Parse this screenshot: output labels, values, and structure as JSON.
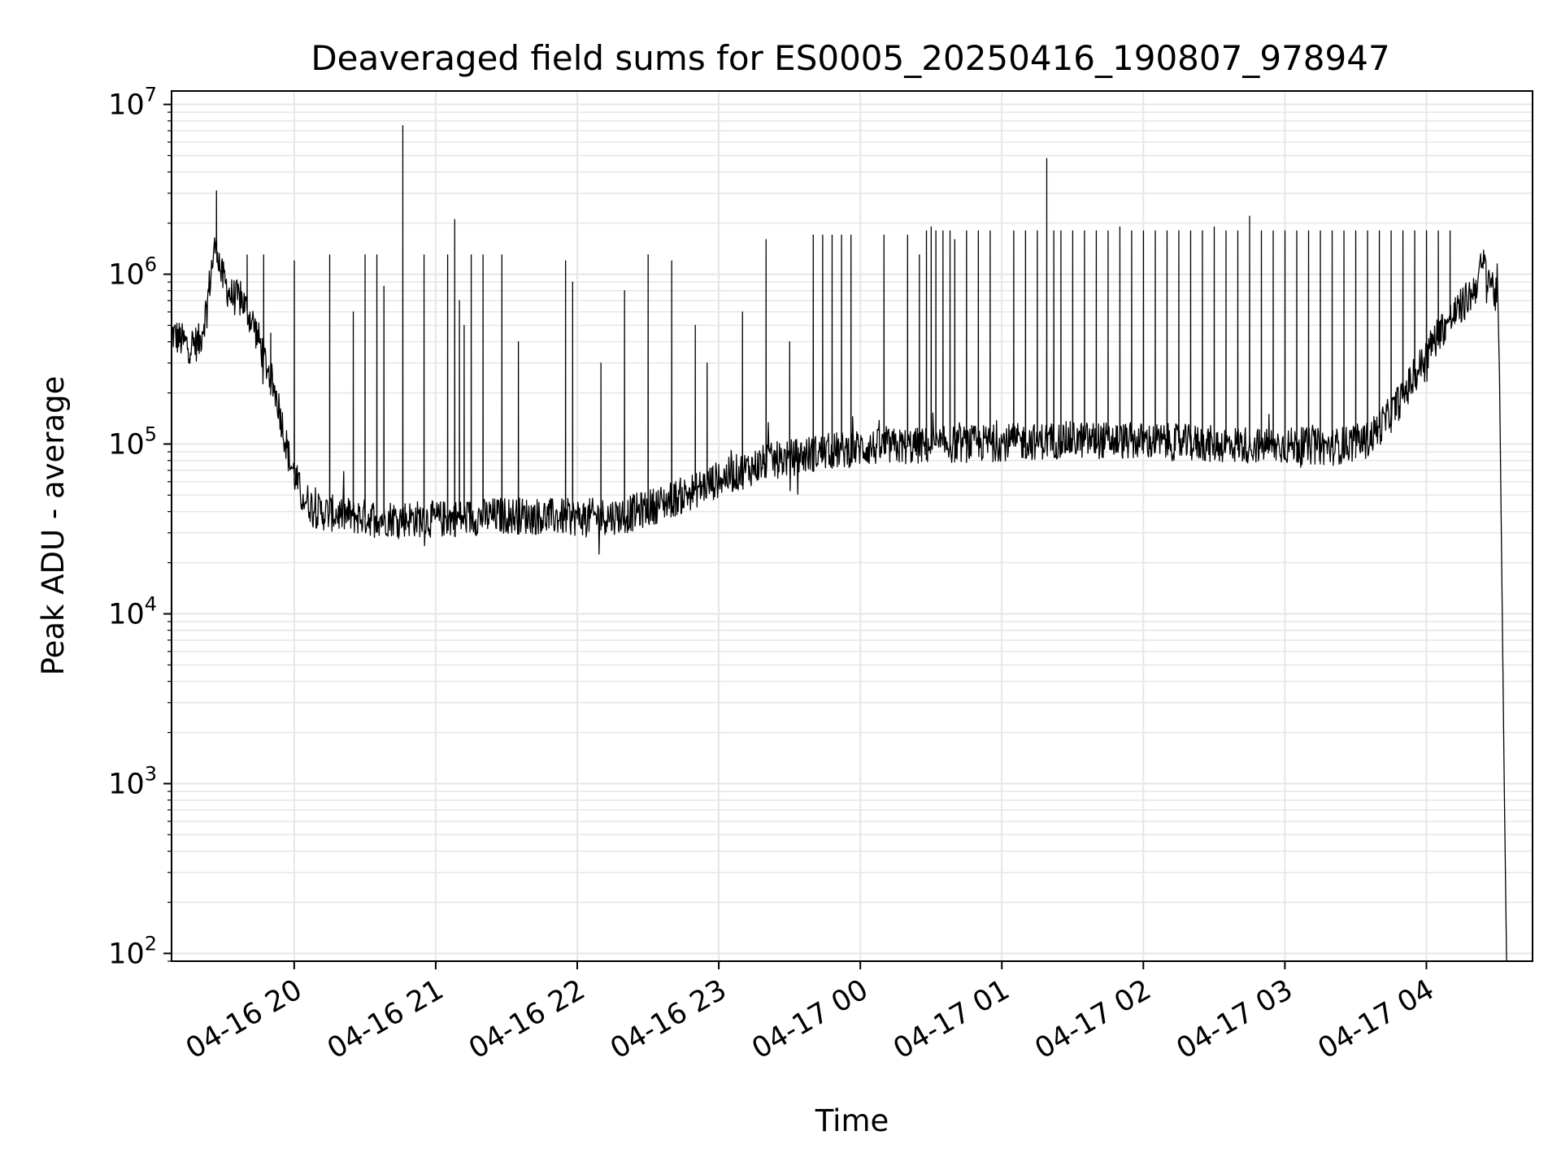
{
  "chart_data": {
    "type": "line",
    "title": "Deaveraged field sums for ES0005_20250416_190807_978947",
    "xlabel": "Time",
    "ylabel": "Peak ADU - average",
    "y_scale": "log",
    "ylim": [
      90,
      12000000
    ],
    "xlim": [
      "04-16 19:08",
      "04-17 04:45"
    ],
    "grid": true,
    "line_color": "#000000",
    "grid_color": "#e6e6e6",
    "x_ticks": [
      {
        "label": "04-16 20",
        "time": "04-16 20:00"
      },
      {
        "label": "04-16 21",
        "time": "04-16 21:00"
      },
      {
        "label": "04-16 22",
        "time": "04-16 22:00"
      },
      {
        "label": "04-16 23",
        "time": "04-16 23:00"
      },
      {
        "label": "04-17 00",
        "time": "04-17 00:00"
      },
      {
        "label": "04-17 01",
        "time": "04-17 01:00"
      },
      {
        "label": "04-17 02",
        "time": "04-17 02:00"
      },
      {
        "label": "04-17 03",
        "time": "04-17 03:00"
      },
      {
        "label": "04-17 04",
        "time": "04-17 04:00"
      }
    ],
    "y_ticks": [
      {
        "base": "10",
        "exp": "2",
        "value": 100
      },
      {
        "base": "10",
        "exp": "3",
        "value": 1000
      },
      {
        "base": "10",
        "exp": "4",
        "value": 10000
      },
      {
        "base": "10",
        "exp": "5",
        "value": 100000
      },
      {
        "base": "10",
        "exp": "6",
        "value": 1000000
      },
      {
        "base": "10",
        "exp": "7",
        "value": 10000000
      }
    ],
    "series": [
      {
        "baseline": [
          [
            "04-16 19:08",
            450000
          ],
          [
            "04-16 19:15",
            380000
          ],
          [
            "04-16 19:20",
            400000
          ],
          [
            "04-16 19:23",
            650000
          ],
          [
            "04-16 19:25",
            1100000
          ],
          [
            "04-16 19:27",
            1600000
          ],
          [
            "04-16 19:29",
            1000000
          ],
          [
            "04-16 19:33",
            750000
          ],
          [
            "04-16 19:38",
            700000
          ],
          [
            "04-16 19:43",
            500000
          ],
          [
            "04-16 19:48",
            300000
          ],
          [
            "04-16 19:53",
            180000
          ],
          [
            "04-16 19:58",
            80000
          ],
          [
            "04-16 20:03",
            50000
          ],
          [
            "04-16 20:10",
            40000
          ],
          [
            "04-16 20:30",
            37000
          ],
          [
            "04-16 21:00",
            36000
          ],
          [
            "04-16 21:30",
            38000
          ],
          [
            "04-16 22:00",
            37000
          ],
          [
            "04-16 22:20",
            38000
          ],
          [
            "04-16 22:30",
            42000
          ],
          [
            "04-16 22:45",
            50000
          ],
          [
            "04-16 23:00",
            62000
          ],
          [
            "04-16 23:20",
            78000
          ],
          [
            "04-16 23:40",
            88000
          ],
          [
            "04-17 00:00",
            95000
          ],
          [
            "04-17 00:30",
            98000
          ],
          [
            "04-17 01:00",
            102000
          ],
          [
            "04-17 01:30",
            106000
          ],
          [
            "04-17 02:00",
            104000
          ],
          [
            "04-17 02:30",
            100000
          ],
          [
            "04-17 03:00",
            98000
          ],
          [
            "04-17 03:20",
            96000
          ],
          [
            "04-17 03:35",
            105000
          ],
          [
            "04-17 03:45",
            150000
          ],
          [
            "04-17 03:55",
            250000
          ],
          [
            "04-17 04:05",
            450000
          ],
          [
            "04-17 04:15",
            650000
          ],
          [
            "04-17 04:20",
            800000
          ],
          [
            "04-17 04:24",
            1150000
          ],
          [
            "04-17 04:27",
            950000
          ],
          [
            "04-17 04:30",
            700000
          ],
          [
            "04-17 04:31",
            250000
          ],
          [
            "04-17 04:33",
            1000
          ],
          [
            "04-17 04:34",
            90
          ]
        ],
        "spikes": [
          [
            "04-16 19:27",
            3100000
          ],
          [
            "04-16 19:40",
            1300000
          ],
          [
            "04-16 19:47",
            1300000
          ],
          [
            "04-16 19:50",
            450000
          ],
          [
            "04-16 20:00",
            1200000
          ],
          [
            "04-16 20:15",
            1300000
          ],
          [
            "04-16 20:25",
            600000
          ],
          [
            "04-16 20:30",
            1300000
          ],
          [
            "04-16 20:35",
            1300000
          ],
          [
            "04-16 20:38",
            850000
          ],
          [
            "04-16 20:46",
            7500000
          ],
          [
            "04-16 20:55",
            1300000
          ],
          [
            "04-16 21:05",
            1300000
          ],
          [
            "04-16 21:10",
            700000
          ],
          [
            "04-16 21:15",
            1300000
          ],
          [
            "04-16 21:20",
            1300000
          ],
          [
            "04-16 21:08",
            2100000
          ],
          [
            "04-16 21:12",
            500000
          ],
          [
            "04-16 21:28",
            1300000
          ],
          [
            "04-16 21:35",
            400000
          ],
          [
            "04-16 21:55",
            1200000
          ],
          [
            "04-16 21:58",
            900000
          ],
          [
            "04-16 22:10",
            300000
          ],
          [
            "04-16 22:20",
            800000
          ],
          [
            "04-16 22:30",
            1300000
          ],
          [
            "04-16 22:40",
            1200000
          ],
          [
            "04-16 22:50",
            500000
          ],
          [
            "04-16 22:55",
            300000
          ],
          [
            "04-16 23:10",
            600000
          ],
          [
            "04-16 23:20",
            1600000
          ],
          [
            "04-16 23:30",
            400000
          ],
          [
            "04-16 23:40",
            1700000
          ],
          [
            "04-16 23:44",
            1700000
          ],
          [
            "04-16 23:48",
            1700000
          ],
          [
            "04-16 23:52",
            1700000
          ],
          [
            "04-16 23:56",
            1700000
          ],
          [
            "04-17 00:10",
            1700000
          ],
          [
            "04-17 00:20",
            1700000
          ],
          [
            "04-17 00:25",
            1300000
          ],
          [
            "04-17 00:28",
            1800000
          ],
          [
            "04-17 00:30",
            1900000
          ],
          [
            "04-17 00:32",
            1800000
          ],
          [
            "04-17 00:35",
            1800000
          ],
          [
            "04-17 00:38",
            1800000
          ],
          [
            "04-17 00:40",
            1600000
          ],
          [
            "04-17 00:45",
            1800000
          ],
          [
            "04-17 00:50",
            1800000
          ],
          [
            "04-17 00:55",
            1800000
          ],
          [
            "04-17 01:05",
            1800000
          ],
          [
            "04-17 01:10",
            1800000
          ],
          [
            "04-17 01:15",
            1800000
          ],
          [
            "04-17 01:19",
            4800000
          ],
          [
            "04-17 01:22",
            1800000
          ],
          [
            "04-17 01:25",
            1800000
          ],
          [
            "04-17 01:30",
            1800000
          ],
          [
            "04-17 01:35",
            1800000
          ],
          [
            "04-17 01:40",
            1800000
          ],
          [
            "04-17 01:45",
            1800000
          ],
          [
            "04-17 01:50",
            1900000
          ],
          [
            "04-17 01:55",
            1800000
          ],
          [
            "04-17 02:00",
            1800000
          ],
          [
            "04-17 02:05",
            1800000
          ],
          [
            "04-17 02:10",
            1800000
          ],
          [
            "04-17 02:15",
            1800000
          ],
          [
            "04-17 02:20",
            1800000
          ],
          [
            "04-17 02:25",
            1800000
          ],
          [
            "04-17 02:30",
            1900000
          ],
          [
            "04-17 02:35",
            1800000
          ],
          [
            "04-17 02:40",
            1800000
          ],
          [
            "04-17 02:45",
            2200000
          ],
          [
            "04-17 02:50",
            1800000
          ],
          [
            "04-17 02:55",
            1800000
          ],
          [
            "04-17 03:00",
            1800000
          ],
          [
            "04-17 03:05",
            1800000
          ],
          [
            "04-17 03:10",
            1800000
          ],
          [
            "04-17 03:15",
            1800000
          ],
          [
            "04-17 03:20",
            1800000
          ],
          [
            "04-17 03:25",
            1800000
          ],
          [
            "04-17 03:30",
            1800000
          ],
          [
            "04-17 03:35",
            1800000
          ],
          [
            "04-17 03:40",
            1800000
          ],
          [
            "04-17 03:45",
            1800000
          ],
          [
            "04-17 03:50",
            1800000
          ],
          [
            "04-17 03:55",
            1800000
          ],
          [
            "04-17 04:00",
            1800000
          ],
          [
            "04-17 04:05",
            1800000
          ],
          [
            "04-17 04:10",
            1800000
          ]
        ]
      }
    ]
  }
}
